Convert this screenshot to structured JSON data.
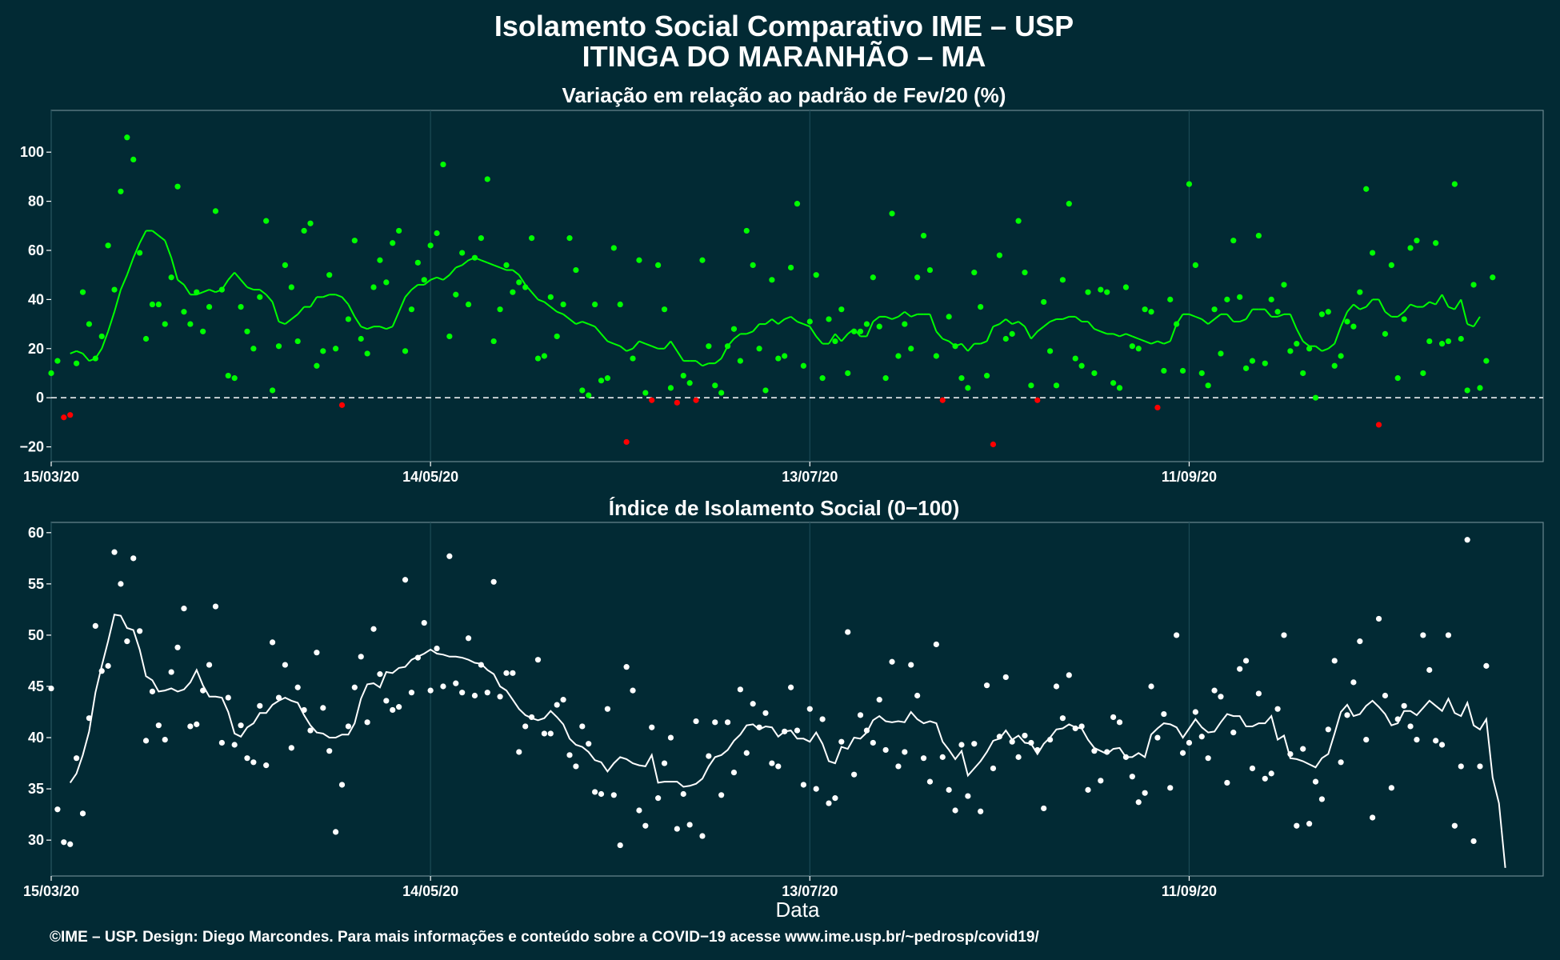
{
  "title": "Isolamento Social Comparativo IME – USP",
  "subtitle": "ITINGA DO MARANHÃO – MA",
  "xlabel": "Data",
  "credits": "©IME – USP. Design: Diego Marcondes. Para mais informações e conteúdo sobre a COVID−19 acesse www.ime.usp.br/~pedrosp/covid19/",
  "colors": {
    "background": "#022a34",
    "grid": "#1b4a55",
    "positive": "#00ff00",
    "negative": "#ff0000",
    "index": "#ffffff"
  },
  "chart_data": [
    {
      "type": "scatter",
      "title": "Variação em relação ao padrão de Fev/20 (%)",
      "x_type": "date",
      "x_start": "15/03/20",
      "xlim": [
        "15/03/20",
        "06/11/20"
      ],
      "x_ticks": [
        "15/03/20",
        "14/05/20",
        "13/07/20",
        "11/09/20"
      ],
      "ylim": [
        -26,
        117
      ],
      "y_ticks": [
        -20,
        0,
        20,
        40,
        60,
        80,
        100
      ],
      "y_tick_labels": [
        "−20",
        "0",
        "20",
        "40",
        "60",
        "80",
        "100"
      ],
      "reference_line": 0,
      "grid": true,
      "values": [
        10,
        15,
        -8,
        -7,
        14,
        43,
        30,
        16,
        25,
        62,
        44,
        84,
        106,
        97,
        59,
        24,
        38,
        38,
        30,
        49,
        86,
        35,
        30,
        43,
        27,
        37,
        76,
        44,
        9,
        8,
        37,
        27,
        20,
        41,
        72,
        3,
        21,
        54,
        45,
        23,
        68,
        71,
        13,
        19,
        50,
        20,
        -3,
        32,
        64,
        24,
        18,
        45,
        56,
        47,
        63,
        68,
        19,
        36,
        55,
        48,
        62,
        67,
        95,
        25,
        42,
        59,
        38,
        57,
        65,
        89,
        23,
        36,
        54,
        43,
        47,
        45,
        65,
        16,
        17,
        41,
        25,
        38,
        65,
        52,
        3,
        1,
        38,
        7,
        8,
        61,
        38,
        -18,
        16,
        56,
        2,
        -1,
        54,
        36,
        4,
        -2,
        9,
        6,
        -1,
        56,
        21,
        5,
        2,
        21,
        28,
        15,
        68,
        54,
        20,
        3,
        48,
        16,
        17,
        53,
        79,
        13,
        31,
        50,
        8,
        32,
        23,
        36,
        10,
        27,
        27,
        30,
        49,
        29,
        8,
        75,
        17,
        30,
        20,
        49,
        66,
        52,
        17,
        -1,
        33,
        21,
        8,
        4,
        51,
        37,
        9,
        -19,
        58,
        24,
        26,
        72,
        51,
        5,
        -1,
        39,
        19,
        5,
        48,
        79,
        16,
        13,
        43,
        10,
        44,
        43,
        6,
        4,
        45,
        21,
        20,
        36,
        35,
        -4,
        11,
        40,
        30,
        11,
        87,
        54,
        10,
        5,
        36,
        18,
        40,
        64,
        41,
        12,
        15,
        66,
        14,
        40,
        35,
        46,
        19,
        22,
        10,
        20,
        0,
        34,
        35,
        13,
        17,
        31,
        29,
        43,
        85,
        59,
        -11,
        26,
        54,
        8,
        32,
        61,
        64,
        10,
        23,
        63,
        22,
        23,
        87,
        24,
        3,
        46,
        4,
        15,
        49
      ],
      "moving_average": [
        null,
        null,
        null,
        18,
        19,
        18,
        15,
        16,
        20,
        27,
        35,
        44,
        50,
        57,
        63,
        68,
        68,
        66,
        64,
        57,
        48,
        46,
        42,
        42,
        43,
        44,
        43,
        44,
        48,
        51,
        48,
        45,
        44,
        44,
        42,
        39,
        31,
        30,
        32,
        34,
        37,
        37,
        41,
        41,
        42,
        42,
        41,
        38,
        33,
        29,
        28,
        29,
        29,
        28,
        29,
        35,
        41,
        44,
        46,
        46,
        48,
        49,
        48,
        50,
        53,
        54,
        56,
        57,
        56,
        55,
        54,
        53,
        52,
        52,
        50,
        46,
        43,
        40,
        39,
        37,
        35,
        34,
        32,
        30,
        31,
        30,
        29,
        26,
        23,
        22,
        21,
        19,
        20,
        23,
        22,
        21,
        20,
        20,
        23,
        19,
        15,
        15,
        15,
        13,
        14,
        14,
        16,
        21,
        24,
        26,
        26,
        27,
        30,
        30,
        32,
        30,
        32,
        33,
        31,
        30,
        29,
        25,
        22,
        22,
        26,
        23,
        26,
        28,
        25,
        25,
        31,
        33,
        33,
        32,
        33,
        35,
        33,
        34,
        34,
        34,
        27,
        24,
        23,
        21,
        22,
        19,
        22,
        22,
        23,
        29,
        30,
        32,
        30,
        31,
        29,
        24,
        27,
        29,
        31,
        32,
        32,
        33,
        33,
        31,
        31,
        28,
        27,
        26,
        26,
        25,
        26,
        25,
        24,
        23,
        22,
        23,
        22,
        23,
        30,
        34,
        34,
        33,
        32,
        30,
        32,
        34,
        34,
        31,
        31,
        32,
        36,
        36,
        36,
        33,
        33,
        34,
        34,
        28,
        23,
        21,
        21,
        19,
        20,
        22,
        29,
        35,
        38,
        36,
        37,
        40,
        40,
        35,
        33,
        33,
        35,
        38,
        37,
        37,
        39,
        38,
        42,
        37,
        36,
        40,
        30,
        29,
        33
      ]
    },
    {
      "type": "scatter",
      "title": "Índice de Isolamento Social (0−100)",
      "x_type": "date",
      "x_start": "15/03/20",
      "xlim": [
        "15/03/20",
        "06/11/20"
      ],
      "x_ticks": [
        "15/03/20",
        "14/05/20",
        "13/07/20",
        "11/09/20"
      ],
      "ylim": [
        26.5,
        61
      ],
      "y_ticks": [
        30,
        35,
        40,
        45,
        50,
        55,
        60
      ],
      "grid": true,
      "values": [
        44.8,
        33.0,
        29.8,
        29.6,
        38.0,
        32.6,
        41.9,
        50.9,
        46.5,
        47.0,
        58.1,
        55.0,
        49.4,
        57.5,
        50.4,
        39.7,
        44.5,
        41.2,
        39.8,
        46.4,
        48.8,
        52.6,
        41.1,
        41.3,
        44.6,
        47.1,
        52.8,
        39.5,
        43.9,
        39.3,
        41.2,
        38.0,
        37.6,
        43.1,
        37.3,
        49.3,
        43.9,
        47.1,
        39.0,
        44.9,
        42.7,
        40.7,
        48.3,
        42.9,
        38.7,
        30.8,
        35.4,
        41.1,
        44.9,
        47.9,
        41.5,
        50.6,
        46.2,
        43.6,
        42.7,
        43.0,
        55.4,
        44.4,
        47.8,
        51.2,
        44.6,
        48.7,
        45.0,
        57.7,
        45.3,
        44.4,
        49.7,
        44.1,
        47.1,
        44.4,
        55.2,
        44.0,
        46.3,
        46.3,
        38.6,
        41.1,
        42.0,
        47.6,
        40.4,
        40.4,
        43.2,
        43.7,
        38.3,
        37.2,
        41.1,
        39.4,
        34.7,
        34.5,
        42.8,
        34.4,
        29.5,
        46.9,
        44.6,
        32.9,
        31.4,
        41.0,
        34.1,
        37.5,
        40.0,
        31.1,
        34.5,
        31.5,
        41.6,
        30.4,
        38.2,
        41.5,
        34.4,
        41.5,
        36.6,
        44.7,
        38.5,
        43.3,
        41.0,
        42.4,
        37.5,
        37.2,
        40.6,
        44.9,
        40.7,
        35.4,
        42.8,
        35.0,
        41.8,
        33.6,
        34.1,
        39.6,
        50.3,
        36.4,
        42.2,
        40.7,
        39.5,
        43.7,
        38.8,
        47.4,
        37.2,
        38.6,
        47.1,
        44.1,
        38.0,
        35.7,
        49.1,
        38.1,
        34.9,
        32.9,
        39.3,
        34.3,
        39.4,
        32.8,
        45.1,
        37.0,
        40.1,
        45.9,
        39.6,
        38.1,
        40.2,
        39.5,
        38.8,
        33.1,
        39.8,
        45.0,
        41.9,
        46.1,
        40.9,
        41.1,
        34.9,
        38.7,
        35.8,
        38.6,
        42.0,
        41.5,
        38.1,
        36.2,
        33.7,
        34.6,
        45.0,
        40.0,
        42.3,
        35.1,
        50.0,
        38.5,
        39.5,
        42.5,
        40.1,
        38.0,
        44.6,
        44.0,
        35.6,
        40.5,
        46.7,
        47.5,
        37.0,
        44.3,
        36.0,
        36.5,
        42.8,
        50.0,
        38.4,
        31.4,
        38.9,
        31.6,
        35.7,
        34.0,
        40.8,
        47.5,
        37.6,
        42.2,
        45.4,
        49.4,
        39.8,
        32.2,
        51.6,
        44.1,
        35.1,
        41.8,
        43.1,
        41.1,
        39.8,
        50.0,
        46.6,
        39.7,
        39.3,
        50.0,
        31.4,
        37.2,
        59.3,
        29.9,
        37.2,
        47.0
      ],
      "moving_average": [
        null,
        null,
        null,
        35.6,
        36.5,
        38.3,
        40.6,
        44.4,
        47.0,
        49.4,
        52.0,
        51.9,
        50.7,
        50.5,
        48.6,
        46.0,
        45.6,
        44.5,
        44.6,
        44.8,
        44.5,
        44.7,
        45.4,
        46.6,
        45.1,
        44.0,
        44.0,
        43.9,
        42.5,
        40.4,
        40.1,
        41.0,
        41.4,
        42.4,
        42.4,
        43.2,
        43.6,
        43.9,
        43.6,
        43.4,
        42.2,
        41.2,
        40.5,
        40.4,
        40.0,
        40.0,
        40.3,
        40.3,
        41.4,
        43.8,
        45.2,
        45.3,
        44.9,
        46.4,
        46.3,
        46.8,
        46.9,
        47.6,
        47.9,
        48.2,
        48.6,
        48.2,
        48.1,
        47.9,
        47.9,
        47.8,
        47.6,
        47.3,
        47.2,
        46.6,
        46.2,
        45.0,
        44.6,
        43.7,
        42.8,
        42.2,
        41.9,
        41.7,
        41.9,
        42.6,
        42.0,
        41.3,
        39.9,
        39.3,
        39.1,
        38.6,
        37.8,
        37.6,
        36.7,
        37.5,
        38.1,
        37.9,
        37.5,
        37.3,
        37.2,
        38.3,
        35.6,
        35.7,
        35.7,
        35.7,
        35.2,
        35.3,
        35.5,
        36.0,
        37.2,
        38.1,
        38.3,
        38.8,
        39.7,
        40.3,
        41.2,
        41.3,
        40.8,
        41.1,
        41.0,
        40.1,
        40.6,
        40.7,
        39.9,
        39.9,
        39.6,
        40.5,
        39.4,
        37.7,
        37.5,
        39.1,
        38.9,
        40.0,
        39.9,
        40.5,
        41.7,
        42.1,
        41.6,
        41.5,
        41.6,
        41.5,
        42.5,
        41.8,
        41.4,
        41.6,
        41.4,
        39.6,
        38.8,
        37.9,
        38.7,
        36.3,
        37.0,
        37.7,
        38.6,
        39.7,
        39.9,
        40.7,
        39.8,
        40.2,
        39.5,
        39.4,
        38.4,
        39.4,
        40.0,
        40.8,
        40.9,
        41.3,
        41.0,
        40.9,
        39.8,
        39.0,
        38.7,
        38.4,
        38.9,
        39.0,
        38.1,
        38.1,
        38.5,
        38.1,
        40.3,
        40.9,
        41.4,
        41.3,
        41.0,
        40.0,
        40.9,
        41.8,
        41.0,
        40.5,
        40.6,
        41.5,
        42.3,
        42.1,
        42.1,
        41.1,
        41.1,
        41.4,
        41.4,
        42.1,
        39.8,
        40.2,
        38.0,
        37.9,
        37.7,
        37.4,
        37.1,
        38.0,
        38.4,
        40.4,
        42.5,
        43.2,
        42.1,
        42.3,
        43.1,
        43.6,
        43.0,
        42.3,
        41.2,
        41.4,
        42.6,
        42.6,
        42.2,
        42.9,
        43.6,
        43.1,
        42.6,
        43.8,
        42.4,
        42.1,
        43.4,
        41.2,
        40.8,
        41.8,
        36.1,
        33.6,
        27.3
      ]
    }
  ]
}
